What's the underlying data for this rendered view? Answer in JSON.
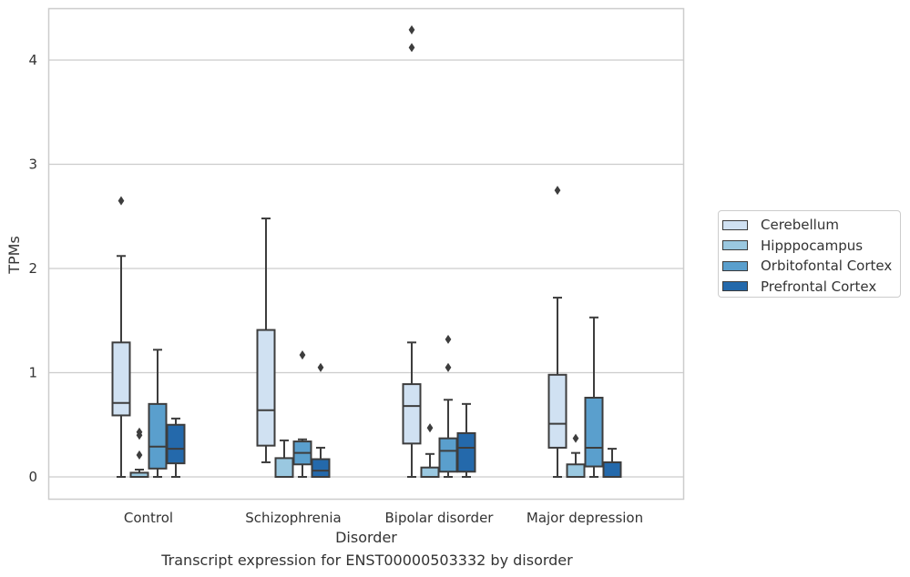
{
  "caption": "Transcript expression for ENST00000503332 by disorder",
  "chart_data": {
    "type": "box",
    "xlabel": "Disorder",
    "ylabel": "TPMs",
    "ylim": [
      -0.2,
      4.5
    ],
    "yticks": [
      0,
      1,
      2,
      3,
      4
    ],
    "grid": "horizontal",
    "legend_position": "right",
    "categories": [
      "Control",
      "Schizophrenia",
      "Bipolar disorder",
      "Major depression"
    ],
    "series": [
      {
        "name": "Cerebellum",
        "color": "#d0e1f2",
        "boxes": [
          {
            "min": 0.0,
            "q1": 0.59,
            "median": 0.71,
            "q3": 1.29,
            "max": 2.12,
            "outliers": [
              2.65
            ]
          },
          {
            "min": 0.14,
            "q1": 0.3,
            "median": 0.64,
            "q3": 1.41,
            "max": 2.48,
            "outliers": []
          },
          {
            "min": 0.0,
            "q1": 0.32,
            "median": 0.68,
            "q3": 0.89,
            "max": 1.29,
            "outliers": [
              4.12,
              4.29
            ]
          },
          {
            "min": 0.0,
            "q1": 0.28,
            "median": 0.51,
            "q3": 0.98,
            "max": 1.72,
            "outliers": [
              2.75
            ]
          }
        ]
      },
      {
        "name": "Hipppocampus",
        "color": "#9ac8e0",
        "boxes": [
          {
            "min": 0.0,
            "q1": 0.0,
            "median": 0.0,
            "q3": 0.04,
            "max": 0.07,
            "outliers": [
              0.21,
              0.4,
              0.43
            ]
          },
          {
            "min": 0.0,
            "q1": 0.0,
            "median": 0.0,
            "q3": 0.18,
            "max": 0.35,
            "outliers": []
          },
          {
            "min": 0.0,
            "q1": 0.0,
            "median": 0.0,
            "q3": 0.09,
            "max": 0.22,
            "outliers": [
              0.47
            ]
          },
          {
            "min": 0.0,
            "q1": 0.0,
            "median": 0.0,
            "q3": 0.12,
            "max": 0.23,
            "outliers": [
              0.37
            ]
          }
        ]
      },
      {
        "name": "Orbitofontal Cortex",
        "color": "#5a9fcd",
        "boxes": [
          {
            "min": 0.0,
            "q1": 0.08,
            "median": 0.29,
            "q3": 0.7,
            "max": 1.22,
            "outliers": []
          },
          {
            "min": 0.0,
            "q1": 0.12,
            "median": 0.23,
            "q3": 0.34,
            "max": 0.36,
            "outliers": [
              1.17
            ]
          },
          {
            "min": 0.0,
            "q1": 0.05,
            "median": 0.25,
            "q3": 0.37,
            "max": 0.74,
            "outliers": [
              1.05,
              1.32
            ]
          },
          {
            "min": 0.0,
            "q1": 0.1,
            "median": 0.28,
            "q3": 0.76,
            "max": 1.53,
            "outliers": []
          }
        ]
      },
      {
        "name": "Prefrontal Cortex",
        "color": "#2469ab",
        "boxes": [
          {
            "min": 0.0,
            "q1": 0.13,
            "median": 0.27,
            "q3": 0.5,
            "max": 0.56,
            "outliers": []
          },
          {
            "min": 0.0,
            "q1": 0.0,
            "median": 0.06,
            "q3": 0.17,
            "max": 0.28,
            "outliers": [
              1.05
            ]
          },
          {
            "min": 0.0,
            "q1": 0.05,
            "median": 0.28,
            "q3": 0.42,
            "max": 0.7,
            "outliers": []
          },
          {
            "min": 0.0,
            "q1": 0.0,
            "median": 0.0,
            "q3": 0.14,
            "max": 0.27,
            "outliers": []
          }
        ]
      }
    ]
  }
}
